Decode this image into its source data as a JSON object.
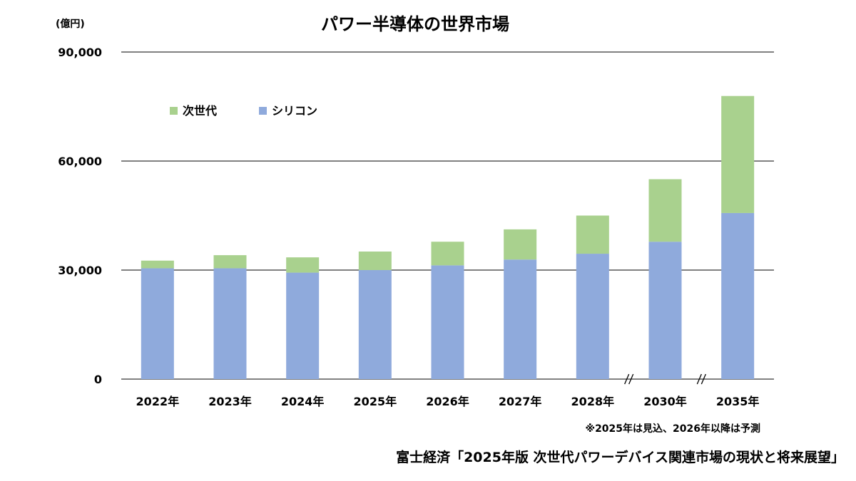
{
  "chart_data": {
    "type": "bar",
    "stacked": true,
    "title": "パワー半導体の世界市場",
    "unit_label": "(億円)",
    "categories": [
      "2022年",
      "2023年",
      "2024年",
      "2025年",
      "2026年",
      "2027年",
      "2028年",
      "2030年",
      "2035年"
    ],
    "series": [
      {
        "name": "シリコン",
        "color": "#8faadc",
        "values": [
          30500,
          30500,
          29300,
          30000,
          31300,
          32900,
          34500,
          37800,
          45700
        ]
      },
      {
        "name": "次世代",
        "color": "#a9d18e",
        "values": [
          2100,
          3600,
          4200,
          5100,
          6500,
          8300,
          10500,
          17200,
          32200
        ]
      }
    ],
    "ylim": [
      0,
      90000
    ],
    "yticks": [
      0,
      30000,
      60000,
      90000
    ],
    "ytick_labels": [
      "0",
      "30,000",
      "60,000",
      "90,000"
    ],
    "grid": true,
    "axis_breaks_before": [
      "2030年",
      "2035年"
    ],
    "legend_position": "top-left",
    "note": "※2025年は見込、2026年以降は予測",
    "source": "富士経済「2025年版 次世代パワーデバイス関連市場の現状と将来展望」"
  }
}
